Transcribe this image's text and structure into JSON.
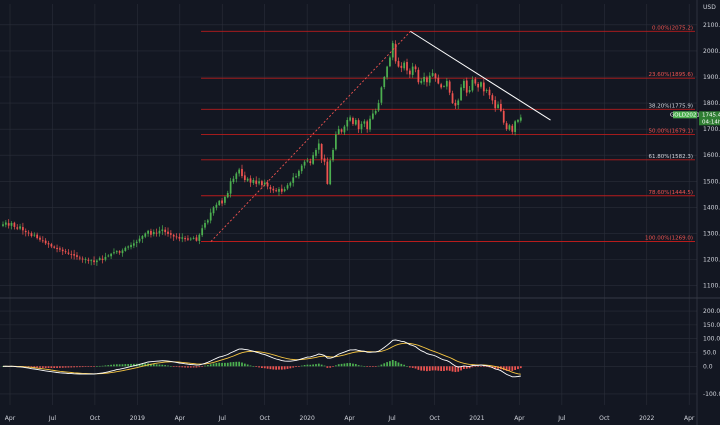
{
  "theme": {
    "background": "#131722",
    "grid": "#2a2e39",
    "text": "#d1d4dc",
    "bull": "#26a69a",
    "bull_bright": "#4caf50",
    "bear": "#ef5350",
    "fib_line": "#b71c1c",
    "fib_label_red": "#ef5350",
    "fib_label_white": "#d1d4dc",
    "trendline": "#ffffff",
    "macd_line": "#ffffff",
    "signal_line": "#f5c542",
    "tag_green": "#4caf50",
    "tag_dark": "#2e7d32"
  },
  "chart_data": [
    {
      "type": "candlestick",
      "symbol": "GOLD",
      "ylim": [
        1060,
        2180
      ],
      "unit_label": "USD",
      "y_ticks": [
        "1100.0",
        "1200.0",
        "1300.0",
        "1400.0",
        "1500.0",
        "1600.0",
        "1700.0",
        "1800.0",
        "1900.0",
        "2000.0",
        "2100.0"
      ],
      "x_ticks": [
        "Apr",
        "Jul",
        "Oct",
        "2019",
        "Apr",
        "Jul",
        "Oct",
        "2020",
        "Apr",
        "Jul",
        "Oct",
        "2021",
        "Apr",
        "Jul",
        "Oct",
        "2022",
        "Apr"
      ],
      "x_tick_months": [
        0,
        3,
        6,
        9,
        12,
        15,
        18,
        21,
        24,
        27,
        30,
        33,
        36,
        39,
        42,
        45,
        48
      ],
      "fib_levels": [
        {
          "label": "0.00%(2075.2)",
          "value": 2075.2,
          "color": "red"
        },
        {
          "label": "23.60%(1895.6)",
          "value": 1895.6,
          "color": "red"
        },
        {
          "label": "38.20%(1775.9)",
          "value": 1775.9,
          "color": "white"
        },
        {
          "label": "50.00%(1679.1)",
          "value": 1679.1,
          "color": "red"
        },
        {
          "label": "61.80%(1582.3)",
          "value": 1582.3,
          "color": "white"
        },
        {
          "label": "78.60%(1444.5)",
          "value": 1444.5,
          "color": "red"
        },
        {
          "label": "100.00%(1269.0)",
          "value": 1269.0,
          "color": "red"
        }
      ],
      "price_tag": {
        "label": "GOLD2021",
        "value": "1745.4",
        "value2": "04:14h",
        "price": 1745.4
      },
      "trendline": {
        "from": {
          "month": 28.3,
          "price": 2075
        },
        "to": {
          "month": 38.2,
          "price": 1735
        }
      },
      "dotted_line": {
        "from": {
          "month": 14.2,
          "price": 1269
        },
        "to": {
          "month": 28.3,
          "price": 2075
        }
      },
      "weekly_closes": [
        1335,
        1342,
        1330,
        1340,
        1325,
        1318,
        1327,
        1312,
        1305,
        1300,
        1290,
        1295,
        1282,
        1276,
        1270,
        1262,
        1258,
        1250,
        1245,
        1240,
        1238,
        1232,
        1228,
        1222,
        1218,
        1215,
        1210,
        1205,
        1200,
        1202,
        1195,
        1197,
        1190,
        1196,
        1205,
        1198,
        1210,
        1215,
        1222,
        1228,
        1232,
        1226,
        1235,
        1245,
        1250,
        1256,
        1262,
        1268,
        1280,
        1290,
        1300,
        1310,
        1295,
        1305,
        1300,
        1310,
        1315,
        1305,
        1298,
        1295,
        1288,
        1285,
        1280,
        1285,
        1278,
        1276,
        1280,
        1282,
        1272,
        1295,
        1320,
        1340,
        1350,
        1380,
        1400,
        1410,
        1425,
        1415,
        1440,
        1455,
        1500,
        1510,
        1530,
        1545,
        1520,
        1505,
        1510,
        1495,
        1505,
        1490,
        1500,
        1485,
        1495,
        1480,
        1470,
        1465,
        1462,
        1470,
        1460,
        1470,
        1485,
        1495,
        1515,
        1520,
        1540,
        1560,
        1575,
        1580,
        1570,
        1600,
        1620,
        1645,
        1585,
        1575,
        1490,
        1580,
        1620,
        1680,
        1700,
        1690,
        1710,
        1735,
        1745,
        1720,
        1735,
        1700,
        1720,
        1730,
        1700,
        1740,
        1760,
        1770,
        1800,
        1860,
        1900,
        1940,
        1975,
        2030,
        1960,
        1940,
        1935,
        1955,
        1925,
        1910,
        1940,
        1930,
        1880,
        1885,
        1900,
        1880,
        1905,
        1915,
        1895,
        1875,
        1860,
        1865,
        1885,
        1840,
        1800,
        1790,
        1810,
        1860,
        1885,
        1840,
        1850,
        1890,
        1875,
        1860,
        1880,
        1845,
        1850,
        1830,
        1810,
        1780,
        1795,
        1770,
        1725,
        1700,
        1715,
        1690,
        1730,
        1735,
        1745
      ]
    },
    {
      "type": "macd",
      "ylim": [
        -140,
        240
      ],
      "y_ticks": [
        "-100.0",
        "0.0",
        "50.0",
        "100.0",
        "150.0",
        "200.0"
      ],
      "y_tick_values": [
        -100,
        0,
        50,
        100,
        150,
        200
      ]
    }
  ]
}
